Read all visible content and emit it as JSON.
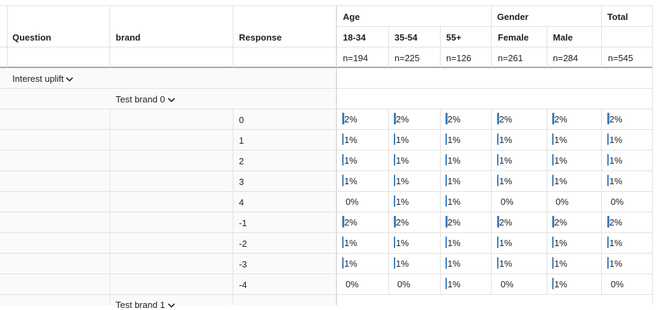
{
  "header": {
    "question": "Question",
    "brand": "brand",
    "response": "Response",
    "group_age": "Age",
    "group_gender": "Gender",
    "group_total": "Total",
    "columns": [
      {
        "label": "18-34",
        "n": "n=194"
      },
      {
        "label": "35-54",
        "n": "n=225"
      },
      {
        "label": "55+",
        "n": "n=126"
      },
      {
        "label": "Female",
        "n": "n=261"
      },
      {
        "label": "Male",
        "n": "n=284"
      },
      {
        "label": "",
        "n": "n=545"
      }
    ]
  },
  "groups": {
    "question": "Interest uplift",
    "brand_0": "Test brand 0",
    "brand_1": "Test brand 1"
  },
  "icons": {
    "expand": "chevron-down-icon"
  },
  "colors": {
    "bar": "#3a7ebf"
  },
  "rows": [
    {
      "response": "0",
      "values": [
        "2%",
        "2%",
        "2%",
        "2%",
        "2%",
        "2%"
      ],
      "bars": [
        2,
        2,
        2,
        2,
        2,
        2
      ]
    },
    {
      "response": "1",
      "values": [
        "1%",
        "1%",
        "1%",
        "1%",
        "1%",
        "1%"
      ],
      "bars": [
        1,
        1,
        1,
        1,
        1,
        1
      ]
    },
    {
      "response": "2",
      "values": [
        "1%",
        "1%",
        "1%",
        "1%",
        "1%",
        "1%"
      ],
      "bars": [
        1,
        1,
        1,
        1,
        1,
        1
      ]
    },
    {
      "response": "3",
      "values": [
        "1%",
        "1%",
        "1%",
        "1%",
        "1%",
        "1%"
      ],
      "bars": [
        1,
        1,
        1,
        1,
        1,
        1
      ]
    },
    {
      "response": "4",
      "values": [
        "0%",
        "1%",
        "1%",
        "0%",
        "0%",
        "0%"
      ],
      "bars": [
        0,
        1,
        1,
        0,
        0,
        0
      ]
    },
    {
      "response": "-1",
      "values": [
        "2%",
        "2%",
        "2%",
        "2%",
        "2%",
        "2%"
      ],
      "bars": [
        2,
        2,
        2,
        2,
        2,
        2
      ]
    },
    {
      "response": "-2",
      "values": [
        "1%",
        "1%",
        "1%",
        "1%",
        "1%",
        "1%"
      ],
      "bars": [
        1,
        1,
        1,
        1,
        1,
        1
      ]
    },
    {
      "response": "-3",
      "values": [
        "1%",
        "1%",
        "1%",
        "1%",
        "1%",
        "1%"
      ],
      "bars": [
        1,
        1,
        1,
        1,
        1,
        1
      ]
    },
    {
      "response": "-4",
      "values": [
        "0%",
        "0%",
        "1%",
        "0%",
        "1%",
        "0%"
      ],
      "bars": [
        0,
        0,
        1,
        0,
        1,
        0
      ]
    }
  ]
}
